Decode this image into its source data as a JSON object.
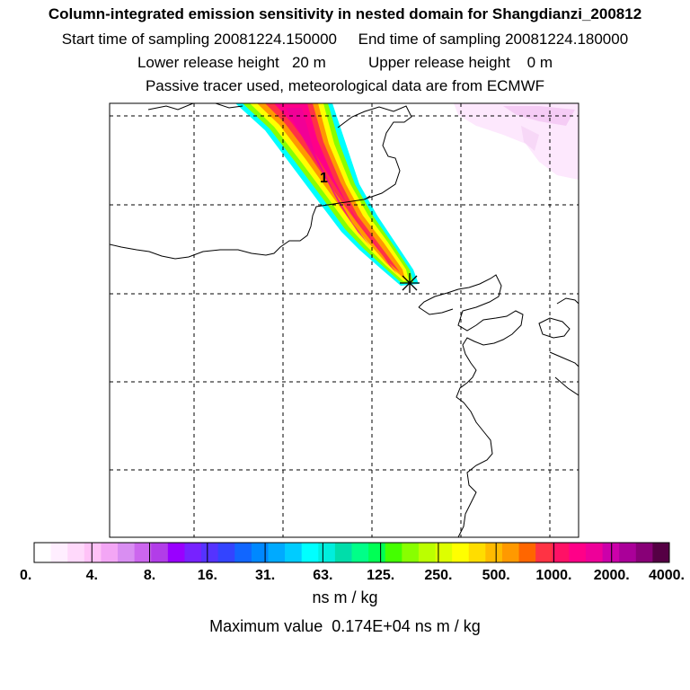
{
  "header": {
    "title": "Column-integrated emission sensitivity in nested domain for Shangdianzi_200812",
    "sampling_line": "Start time of sampling 20081224.150000     End time of sampling 20081224.180000",
    "release_line": "Lower release height   20 m          Upper release height    0 m",
    "tracer_line": "Passive tracer used, meteorological data are from ECMWF"
  },
  "chart_data": {
    "type": "heatmap",
    "title": "Column-integrated emission sensitivity in nested domain for Shangdianzi_200812",
    "plume_label": "1",
    "receptor_marker": "star",
    "grid": true,
    "colorbar": {
      "tick_labels": [
        "0.",
        "4.",
        "8.",
        "16.",
        "31.",
        "63.",
        "125.",
        "250.",
        "500.",
        "1000.",
        "2000.",
        "4000."
      ],
      "tick_values": [
        0,
        4,
        8,
        16,
        31,
        63,
        125,
        250,
        500,
        1000,
        2000,
        4000
      ],
      "colors": [
        "#ffffff",
        "#ffeeff",
        "#ffd9fb",
        "#ffc2f7",
        "#f3a6f5",
        "#d98ef2",
        "#cc66ee",
        "#b23de8",
        "#9900ff",
        "#7722ff",
        "#5533ff",
        "#3344ff",
        "#1166ff",
        "#0088ff",
        "#00aaff",
        "#00ccff",
        "#00ffff",
        "#00eedd",
        "#00ddaa",
        "#00ff88",
        "#00ff55",
        "#44ff00",
        "#88ff00",
        "#bbff00",
        "#ddff00",
        "#ffff00",
        "#ffdd00",
        "#ffbb00",
        "#ff9900",
        "#ff6600",
        "#ff3344",
        "#ff1166",
        "#ff0088",
        "#ee0099",
        "#cc00aa",
        "#aa0099",
        "#880077",
        "#550044"
      ],
      "units": "ns m / kg"
    },
    "units_label": "ns m / kg",
    "max_value_text": "Maximum value  0.174E+04 ns m / kg",
    "max_value": 1740
  }
}
